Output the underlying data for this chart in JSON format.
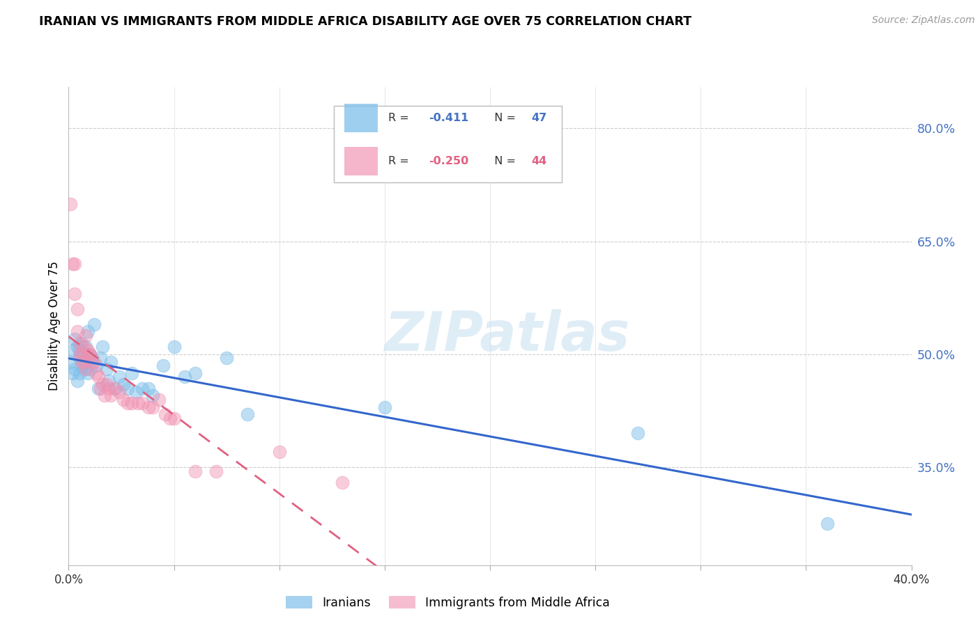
{
  "title": "IRANIAN VS IMMIGRANTS FROM MIDDLE AFRICA DISABILITY AGE OVER 75 CORRELATION CHART",
  "source": "Source: ZipAtlas.com",
  "ylabel": "Disability Age Over 75",
  "yticks": [
    0.35,
    0.5,
    0.65,
    0.8
  ],
  "ytick_labels": [
    "35.0%",
    "50.0%",
    "65.0%",
    "80.0%"
  ],
  "xmin": 0.0,
  "xmax": 0.4,
  "ymin": 0.22,
  "ymax": 0.855,
  "iranians_R": -0.411,
  "iranians_N": 47,
  "middle_africa_R": -0.25,
  "middle_africa_N": 44,
  "blue_color": "#7fbfea",
  "pink_color": "#f090b0",
  "blue_line_color": "#3366cc",
  "pink_line_color": "#e06080",
  "watermark": "ZIPatlas",
  "iranians_x": [
    0.001,
    0.002,
    0.002,
    0.003,
    0.003,
    0.004,
    0.004,
    0.005,
    0.005,
    0.005,
    0.006,
    0.006,
    0.007,
    0.007,
    0.008,
    0.008,
    0.009,
    0.009,
    0.01,
    0.01,
    0.011,
    0.012,
    0.013,
    0.014,
    0.015,
    0.016,
    0.018,
    0.019,
    0.02,
    0.022,
    0.024,
    0.026,
    0.028,
    0.03,
    0.032,
    0.035,
    0.038,
    0.04,
    0.045,
    0.05,
    0.055,
    0.06,
    0.075,
    0.085,
    0.15,
    0.27,
    0.36
  ],
  "iranians_y": [
    0.49,
    0.505,
    0.475,
    0.52,
    0.48,
    0.51,
    0.465,
    0.495,
    0.505,
    0.475,
    0.485,
    0.515,
    0.5,
    0.48,
    0.51,
    0.49,
    0.53,
    0.475,
    0.5,
    0.48,
    0.495,
    0.54,
    0.485,
    0.455,
    0.495,
    0.51,
    0.48,
    0.465,
    0.49,
    0.455,
    0.47,
    0.46,
    0.455,
    0.475,
    0.45,
    0.455,
    0.455,
    0.445,
    0.485,
    0.51,
    0.47,
    0.475,
    0.495,
    0.42,
    0.43,
    0.395,
    0.275
  ],
  "middle_africa_x": [
    0.001,
    0.002,
    0.003,
    0.003,
    0.004,
    0.004,
    0.005,
    0.005,
    0.006,
    0.006,
    0.007,
    0.007,
    0.008,
    0.008,
    0.009,
    0.01,
    0.01,
    0.011,
    0.012,
    0.013,
    0.014,
    0.015,
    0.016,
    0.017,
    0.018,
    0.019,
    0.02,
    0.022,
    0.024,
    0.026,
    0.028,
    0.03,
    0.033,
    0.035,
    0.038,
    0.04,
    0.043,
    0.046,
    0.048,
    0.05,
    0.06,
    0.07,
    0.1,
    0.13
  ],
  "middle_africa_y": [
    0.7,
    0.62,
    0.62,
    0.58,
    0.56,
    0.53,
    0.515,
    0.5,
    0.5,
    0.49,
    0.51,
    0.49,
    0.48,
    0.525,
    0.505,
    0.5,
    0.5,
    0.49,
    0.49,
    0.475,
    0.47,
    0.455,
    0.46,
    0.445,
    0.46,
    0.455,
    0.445,
    0.455,
    0.45,
    0.44,
    0.435,
    0.435,
    0.435,
    0.435,
    0.43,
    0.43,
    0.44,
    0.42,
    0.415,
    0.415,
    0.345,
    0.345,
    0.37,
    0.33
  ]
}
